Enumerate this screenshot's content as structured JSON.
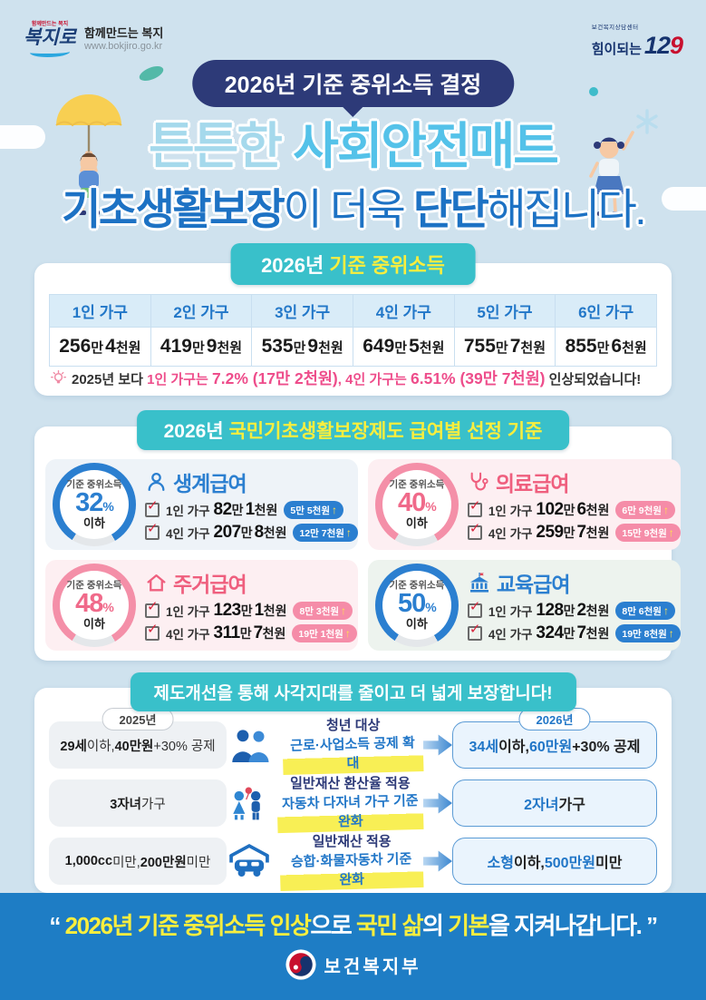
{
  "colors": {
    "teal": "#39c0ca",
    "navy": "#2d3a78",
    "blue": "#2277c8",
    "light_blue": "#54c2e9",
    "pink": "#ee4d8b",
    "yellow": "#f9ee3e",
    "band_blue": "#1e7dc5"
  },
  "header": {
    "bokjiro": {
      "top": "함께만드는 복지",
      "brand": "복지로",
      "tagline": "함께만드는 복지",
      "url": "www.bokjiro.go.kr"
    },
    "callcenter": {
      "small": "보건복지상담센터",
      "text": "힘이되는",
      "num12": "12",
      "num9": "9"
    },
    "badge": "2026년 기준 중위소득 결정",
    "title1_a": "튼튼한 ",
    "title1_b": "사회안전매트",
    "title2_a": "기초생활보장",
    "title2_b": "이 더욱 ",
    "title2_c": "단단",
    "title2_d": "해집니다."
  },
  "median": {
    "heading_a": "2026년 ",
    "heading_b": "기준 중위소득",
    "columns": [
      "1인 가구",
      "2인 가구",
      "3인 가구",
      "4인 가구",
      "5인 가구",
      "6인 가구"
    ],
    "values": [
      {
        "n1": "256",
        "u1": "만",
        "n2": "4",
        "u2": "천원"
      },
      {
        "n1": "419",
        "u1": "만",
        "n2": "9",
        "u2": "천원"
      },
      {
        "n1": "535",
        "u1": "만",
        "n2": "9",
        "u2": "천원"
      },
      {
        "n1": "649",
        "u1": "만",
        "n2": "5",
        "u2": "천원"
      },
      {
        "n1": "755",
        "u1": "만",
        "n2": "7",
        "u2": "천원"
      },
      {
        "n1": "855",
        "u1": "만",
        "n2": "6",
        "u2": "천원"
      }
    ],
    "note": [
      {
        "t": "2025년 보다 ",
        "c": "dark"
      },
      {
        "t": "1인 가구는 ",
        "c": "pink"
      },
      {
        "t": "7.2% (17만 2천원)",
        "c": "pinkbold"
      },
      {
        "t": ", ",
        "c": "pink"
      },
      {
        "t": "4인 가구는 ",
        "c": "pink"
      },
      {
        "t": "6.51% (39만 7천원)",
        "c": "pinkbold"
      },
      {
        "t": " 인상되었습니다!",
        "c": "dark"
      }
    ]
  },
  "benefits": {
    "heading_a": "2026년 ",
    "heading_b": "국민기초생활보장제도 급여별 선정 기준",
    "circle_label": "기준 중위소득",
    "circle_suffix": "이하",
    "percent_sign": "%",
    "arrow_up": "↑",
    "cards": [
      {
        "name": "생계급여",
        "percent": "32",
        "rows": [
          {
            "label": "1인 가구",
            "n1": "82",
            "u1": "만",
            "n2": "1",
            "u2": "천원",
            "raise": "5만 5천원"
          },
          {
            "label": "4인 가구",
            "n1": "207",
            "u1": "만",
            "n2": "8",
            "u2": "천원",
            "raise": "12만 7천원"
          }
        ]
      },
      {
        "name": "의료급여",
        "percent": "40",
        "rows": [
          {
            "label": "1인 가구",
            "n1": "102",
            "u1": "만",
            "n2": "6",
            "u2": "천원",
            "raise": "6만 9천원"
          },
          {
            "label": "4인 가구",
            "n1": "259",
            "u1": "만",
            "n2": "7",
            "u2": "천원",
            "raise": "15만 9천원"
          }
        ]
      },
      {
        "name": "주거급여",
        "percent": "48",
        "rows": [
          {
            "label": "1인 가구",
            "n1": "123",
            "u1": "만",
            "n2": "1",
            "u2": "천원",
            "raise": "8만 3천원"
          },
          {
            "label": "4인 가구",
            "n1": "311",
            "u1": "만",
            "n2": "7",
            "u2": "천원",
            "raise": "19만 1천원"
          }
        ]
      },
      {
        "name": "교육급여",
        "percent": "50",
        "rows": [
          {
            "label": "1인 가구",
            "n1": "128",
            "u1": "만",
            "n2": "2",
            "u2": "천원",
            "raise": "8만 6천원"
          },
          {
            "label": "4인 가구",
            "n1": "324",
            "u1": "만",
            "n2": "7",
            "u2": "천원",
            "raise": "19만 8천원"
          }
        ]
      }
    ]
  },
  "improve": {
    "heading": [
      {
        "t": "제도개선을 통해 ",
        "c": "white"
      },
      {
        "t": "사각지대를",
        "c": "yellow"
      },
      {
        "t": " 줄이고 더 넓게 ",
        "c": "white"
      },
      {
        "t": "보장",
        "c": "yellow"
      },
      {
        "t": "합니다!",
        "c": "white"
      }
    ],
    "label_2025": "2025년",
    "label_2026": "2026년",
    "rows": [
      {
        "before": [
          {
            "t": "29세",
            "h": true
          },
          {
            "t": " 이하, "
          },
          {
            "t": "40만원",
            "h": true
          },
          {
            "t": "+30% 공제"
          }
        ],
        "mid_top": "청년 대상",
        "mid_bottom": "근로·사업소득 공제 확대",
        "after": [
          {
            "t": "34세",
            "h": true
          },
          {
            "t": " 이하, "
          },
          {
            "t": "60만원",
            "h": true
          },
          {
            "t": "+30% 공제"
          }
        ]
      },
      {
        "before": [
          {
            "t": "3자녀",
            "h": true
          },
          {
            "t": " 가구"
          }
        ],
        "mid_top": "일반재산 환산율 적용",
        "mid_bottom": "자동차 다자녀 가구 기준 완화",
        "after": [
          {
            "t": "2자녀",
            "h": true
          },
          {
            "t": " 가구"
          }
        ]
      },
      {
        "before": [
          {
            "t": "1,000cc",
            "h": true
          },
          {
            "t": " 미만, "
          },
          {
            "t": "200만원",
            "h": true
          },
          {
            "t": " 미만"
          }
        ],
        "mid_top": "일반재산 적용",
        "mid_bottom": "승합·화물자동차 기준 완화",
        "after": [
          {
            "t": "소형",
            "h": true
          },
          {
            "t": " 이하, "
          },
          {
            "t": "500만원",
            "h": true
          },
          {
            "t": " 미만"
          }
        ]
      }
    ]
  },
  "footer": {
    "quote": [
      {
        "t": "“ ",
        "c": "white"
      },
      {
        "t": "2026년 기준 중위소득 인상",
        "c": "yellow"
      },
      {
        "t": "으로 ",
        "c": "white"
      },
      {
        "t": "국민 삶",
        "c": "yellow"
      },
      {
        "t": "의 ",
        "c": "white"
      },
      {
        "t": "기본",
        "c": "yellow"
      },
      {
        "t": "을 ",
        "c": "white"
      },
      {
        "t": "지켜나갑니다. ",
        "c": "white"
      },
      {
        "t": "”",
        "c": "white"
      }
    ],
    "ministry": "보건복지부"
  }
}
